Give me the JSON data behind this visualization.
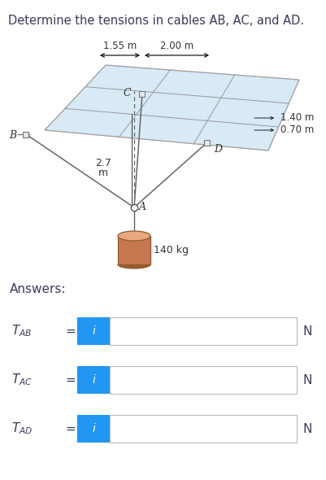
{
  "title": "Determine the tensions in cables AB, AC, and AD.",
  "title_color": "#3a3a5c",
  "title_fontsize": 10.5,
  "bg_color": "#ffffff",
  "answers_label": "Answers:",
  "answers_color": "#3a3a5c",
  "answers_fontsize": 11,
  "button_color": "#2196F3",
  "button_text": "i",
  "button_text_color": "#ffffff",
  "input_box_color": "#ffffff",
  "input_box_edge_color": "#bbbbbb",
  "unit_color": "#3a3a5c",
  "diagram_labels": {
    "dim1": "1.55 m",
    "dim2": "2.00 m",
    "dim3": "1.40 m",
    "dim4": "0.70 m",
    "dim5_line1": "2.7",
    "dim5_line2": "m",
    "mass": "140 kg",
    "pointA": "A",
    "pointB": "B",
    "pointC": "C",
    "pointD": "D"
  },
  "plate_color": "#d4e8f5",
  "plate_edge_color": "#999999",
  "cylinder_top_color": "#e8a880",
  "cylinder_body_color": "#c87850",
  "cylinder_bot_color": "#a05828",
  "cylinder_edge_color": "#8B5A2B",
  "wire_color": "#666666",
  "dashed_color": "#666666",
  "label_color": "#333333",
  "bracket_color": "#888888",
  "row_labels": [
    "T_{AB}",
    "T_{AC}",
    "T_{AD}"
  ],
  "units": [
    "N",
    "N",
    "N"
  ]
}
